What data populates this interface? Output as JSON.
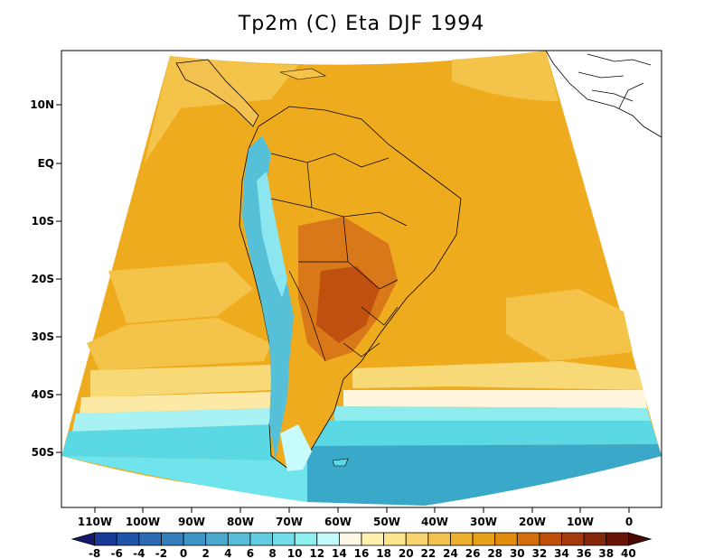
{
  "title": "Tp2m (C) Eta DJF 1994",
  "latitude_labels": [
    "10N",
    "EQ",
    "10S",
    "20S",
    "30S",
    "40S",
    "50S"
  ],
  "longitude_labels": [
    "110W",
    "100W",
    "90W",
    "80W",
    "70W",
    "60W",
    "50W",
    "40W",
    "30W",
    "20W",
    "10W",
    "0"
  ],
  "colorbar": {
    "labels": [
      "-8",
      "-6",
      "-4",
      "-2",
      "0",
      "2",
      "4",
      "6",
      "8",
      "10",
      "12",
      "14",
      "16",
      "18",
      "20",
      "22",
      "24",
      "26",
      "28",
      "30",
      "32",
      "34",
      "36",
      "38",
      "40"
    ],
    "colors": [
      "#14196e",
      "#163a95",
      "#1f55a8",
      "#2a6bb3",
      "#3480bd",
      "#3d95c6",
      "#49a9cf",
      "#56bcd8",
      "#62cde0",
      "#70dde8",
      "#8ff0f0",
      "#c3fbfb",
      "#fff8e6",
      "#fff0b0",
      "#fde58d",
      "#f8d470",
      "#f2c14f",
      "#eeb12e",
      "#e8a11a",
      "#e28c10",
      "#d56e0b",
      "#c04f0a",
      "#a53a0a",
      "#85280a",
      "#6a1408",
      "#4a0a06"
    ]
  },
  "colors": {
    "ocean_warm": "#eeab1e",
    "ocean_mid": "#f4c34a",
    "ocean_cool": "#f8d978",
    "cold_band": "#5ad8e4",
    "cold_deep": "#3aa8c8",
    "land_hot": "#c85a0c",
    "andes": "#55c0d8"
  }
}
